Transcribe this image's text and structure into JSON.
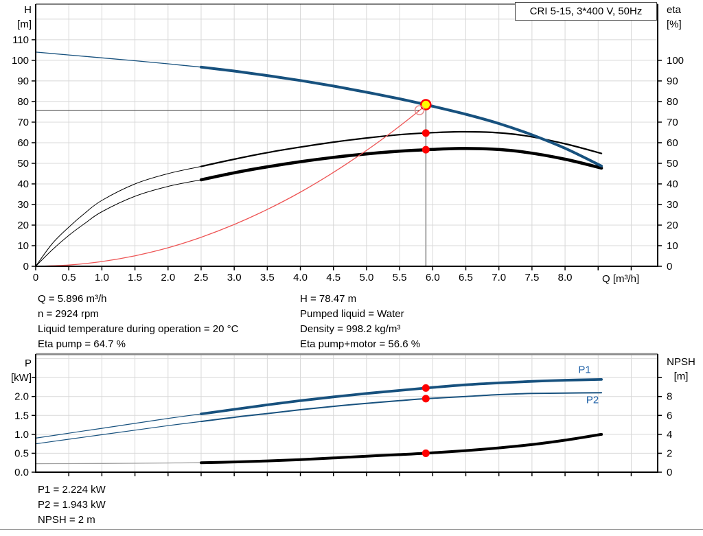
{
  "duty_text": {
    "left": [
      "Q = 5.896 m³/h",
      "n = 2924 rpm",
      "Liquid temperature during operation = 20 °C",
      "Eta pump = 64.7 %"
    ],
    "right": [
      "H = 78.47 m",
      "Pumped liquid = Water",
      "Density = 998.2 kg/m³",
      "Eta pump+motor = 56.6 %"
    ]
  },
  "power_text": [
    "P1 = 2.224 kW",
    "P2 = 1.943 kW",
    "NPSH = 2 m"
  ],
  "colors": {
    "curve_blue": "#17517e",
    "label_blue": "#1d5fa6",
    "black": "#000000",
    "red": "#ff0000",
    "light_red": "#ee5555",
    "open_marker_red": "#e98f8f",
    "yellow": "#ffff00",
    "grid": "#d8d8d8",
    "vline_gray": "#a8a8a8",
    "hline_gray": "#4d4d4d",
    "npsh_thin_gray": "#a0a0a0",
    "border_gray": "#8c8c8c",
    "white": "#ffffff"
  },
  "chart_data": [
    {
      "type": "line",
      "name": "qh-efficiency-chart",
      "title": "CRI 5-15, 3*400 V, 50Hz",
      "x_axis": {
        "label": "Q [m³/h]",
        "min": 0,
        "max": 9.4,
        "ticks": [
          {
            "v": 0,
            "t": "0"
          },
          {
            "v": 0.5,
            "t": "0.5"
          },
          {
            "v": 1,
            "t": "1.0"
          },
          {
            "v": 1.5,
            "t": "1.5"
          },
          {
            "v": 2,
            "t": "2.0"
          },
          {
            "v": 2.5,
            "t": "2.5"
          },
          {
            "v": 3,
            "t": "3.0"
          },
          {
            "v": 3.5,
            "t": "3.5"
          },
          {
            "v": 4,
            "t": "4.0"
          },
          {
            "v": 4.5,
            "t": "4.5"
          },
          {
            "v": 5,
            "t": "5.0"
          },
          {
            "v": 5.5,
            "t": "5.5"
          },
          {
            "v": 6,
            "t": "6.0"
          },
          {
            "v": 6.5,
            "t": "6.5"
          },
          {
            "v": 7,
            "t": "7.0"
          },
          {
            "v": 7.5,
            "t": "7.5"
          },
          {
            "v": 8,
            "t": "8.0"
          },
          {
            "v": 8.5,
            "t": ""
          },
          {
            "v": 9,
            "t": ""
          }
        ]
      },
      "y_left": {
        "label_lines": [
          "H",
          "[m]"
        ],
        "min": 0,
        "max": 127.3,
        "ticks": [
          {
            "v": 0,
            "t": "0"
          },
          {
            "v": 10,
            "t": "10"
          },
          {
            "v": 20,
            "t": "20"
          },
          {
            "v": 30,
            "t": "30"
          },
          {
            "v": 40,
            "t": "40"
          },
          {
            "v": 50,
            "t": "50"
          },
          {
            "v": 60,
            "t": "60"
          },
          {
            "v": 70,
            "t": "70"
          },
          {
            "v": 80,
            "t": "80"
          },
          {
            "v": 90,
            "t": "90"
          },
          {
            "v": 100,
            "t": "100"
          },
          {
            "v": 110,
            "t": "110"
          }
        ],
        "grid_extra": [
          120
        ]
      },
      "y_right": {
        "label_lines": [
          "eta",
          "[%]"
        ],
        "min": 0,
        "max": 100,
        "left_equivalent_factor": 1.0,
        "ticks": [
          {
            "v": 0,
            "t": "0"
          },
          {
            "v": 10,
            "t": "10"
          },
          {
            "v": 20,
            "t": "20"
          },
          {
            "v": 30,
            "t": "30"
          },
          {
            "v": 40,
            "t": "40"
          },
          {
            "v": 50,
            "t": "50"
          },
          {
            "v": 60,
            "t": "60"
          },
          {
            "v": 70,
            "t": "70"
          },
          {
            "v": 80,
            "t": "80"
          },
          {
            "v": 90,
            "t": "90"
          },
          {
            "v": 100,
            "t": "100"
          }
        ]
      },
      "series": [
        {
          "name": "eta-pump-curve",
          "axis": "left",
          "color": "#000000",
          "split": 2.5,
          "thin_width": 1,
          "width": 2.2,
          "points": [
            [
              0,
              0
            ],
            [
              0.25,
              11
            ],
            [
              0.5,
              19
            ],
            [
              0.75,
              26
            ],
            [
              1,
              32
            ],
            [
              1.5,
              40
            ],
            [
              2,
              45
            ],
            [
              2.5,
              48.5
            ],
            [
              3,
              52
            ],
            [
              3.5,
              55.2
            ],
            [
              4,
              57.9
            ],
            [
              4.5,
              60.3
            ],
            [
              5,
              62.3
            ],
            [
              5.5,
              63.9
            ],
            [
              5.896,
              64.7
            ],
            [
              6.4,
              65.3
            ],
            [
              6.9,
              65
            ],
            [
              7.4,
              63.4
            ],
            [
              8,
              59.5
            ],
            [
              8.55,
              54.8
            ]
          ]
        },
        {
          "name": "eta-pump-motor-curve",
          "axis": "left",
          "color": "#000000",
          "split": 2.5,
          "thin_width": 1,
          "width": 4.5,
          "points": [
            [
              0,
              0
            ],
            [
              0.25,
              8
            ],
            [
              0.5,
              15
            ],
            [
              0.75,
              21
            ],
            [
              1,
              26.5
            ],
            [
              1.5,
              34
            ],
            [
              2,
              38.8
            ],
            [
              2.5,
              42
            ],
            [
              3,
              45.4
            ],
            [
              3.5,
              48.3
            ],
            [
              4,
              50.8
            ],
            [
              4.5,
              52.9
            ],
            [
              5,
              54.6
            ],
            [
              5.5,
              55.9
            ],
            [
              5.896,
              56.6
            ],
            [
              6.4,
              57.2
            ],
            [
              6.9,
              56.9
            ],
            [
              7.4,
              55.4
            ],
            [
              8,
              52
            ],
            [
              8.55,
              47.7
            ]
          ]
        },
        {
          "name": "pump-qh-curve",
          "axis": "left",
          "color": "#17517e",
          "split": 2.5,
          "thin_width": 1.3,
          "width": 4,
          "points": [
            [
              0,
              104
            ],
            [
              0.5,
              102.6
            ],
            [
              1,
              101.2
            ],
            [
              1.5,
              99.8
            ],
            [
              2,
              98.3
            ],
            [
              2.5,
              96.7
            ],
            [
              3,
              94.8
            ],
            [
              3.5,
              92.6
            ],
            [
              4,
              90.2
            ],
            [
              4.5,
              87.5
            ],
            [
              5,
              84.5
            ],
            [
              5.5,
              81.3
            ],
            [
              5.896,
              78.47
            ],
            [
              6.5,
              73.8
            ],
            [
              7,
              69.3
            ],
            [
              7.5,
              63.8
            ],
            [
              8,
              57.3
            ],
            [
              8.55,
              48.7
            ]
          ]
        },
        {
          "name": "system-curve",
          "axis": "left",
          "color": "#ee5555",
          "width": 1.3,
          "points": [
            [
              0,
              0
            ],
            [
              0.5,
              0.6
            ],
            [
              1,
              2.3
            ],
            [
              1.5,
              5.1
            ],
            [
              2,
              9
            ],
            [
              2.5,
              14.1
            ],
            [
              3,
              20.3
            ],
            [
              3.5,
              27.6
            ],
            [
              4,
              36
            ],
            [
              4.5,
              45.6
            ],
            [
              5,
              56.3
            ],
            [
              5.4,
              65.6
            ],
            [
              5.7,
              73.1
            ],
            [
              5.896,
              78.2
            ]
          ]
        }
      ],
      "annotations": {
        "vline": {
          "x": 5.896,
          "y_from": 78.47,
          "y_to": 0
        },
        "hline": {
          "y": 75.8,
          "x_from": 0,
          "x_to": 5.8
        },
        "markers": [
          {
            "name": "duty-point-marker",
            "x": 5.896,
            "y": 78.47,
            "axis": "left",
            "style": "yellow",
            "interactable": true
          },
          {
            "name": "requested-duty-marker",
            "x": 5.8,
            "y": 75.8,
            "axis": "left",
            "style": "open",
            "interactable": false
          },
          {
            "name": "eta-pump-marker",
            "x": 5.896,
            "y": 64.7,
            "axis": "left",
            "style": "red",
            "interactable": false
          },
          {
            "name": "eta-pump-motor-marker",
            "x": 5.896,
            "y": 56.6,
            "axis": "left",
            "style": "red",
            "interactable": false
          }
        ]
      }
    },
    {
      "type": "line",
      "name": "power-npsh-chart",
      "x_axis": {
        "min": 0,
        "max": 9.4,
        "ticks": [
          {
            "v": 0.5,
            "t": ""
          },
          {
            "v": 1,
            "t": ""
          },
          {
            "v": 1.5,
            "t": ""
          },
          {
            "v": 2,
            "t": ""
          },
          {
            "v": 2.5,
            "t": ""
          },
          {
            "v": 3,
            "t": ""
          },
          {
            "v": 3.5,
            "t": ""
          },
          {
            "v": 4,
            "t": ""
          },
          {
            "v": 4.5,
            "t": ""
          },
          {
            "v": 5,
            "t": ""
          },
          {
            "v": 5.5,
            "t": ""
          },
          {
            "v": 6,
            "t": ""
          },
          {
            "v": 6.5,
            "t": ""
          },
          {
            "v": 7,
            "t": ""
          },
          {
            "v": 7.5,
            "t": ""
          },
          {
            "v": 8,
            "t": ""
          },
          {
            "v": 8.5,
            "t": ""
          },
          {
            "v": 9,
            "t": ""
          }
        ]
      },
      "y_left": {
        "label_lines": [
          "P",
          "[kW]"
        ],
        "min": 0,
        "max": 3.12,
        "ticks": [
          {
            "v": 0,
            "t": "0.0"
          },
          {
            "v": 0.5,
            "t": "0.5"
          },
          {
            "v": 1,
            "t": "1.0"
          },
          {
            "v": 1.5,
            "t": "1.5"
          },
          {
            "v": 2,
            "t": "2.0"
          },
          {
            "v": 2.5,
            "t": ""
          }
        ],
        "grid_extra": [
          3.0
        ]
      },
      "y_right": {
        "label_lines": [
          "NPSH",
          "[m]"
        ],
        "min": 0,
        "max": 10,
        "left_equivalent_factor": 0.25,
        "ticks": [
          {
            "v": 0,
            "t": "0"
          },
          {
            "v": 2,
            "t": "2"
          },
          {
            "v": 4,
            "t": "4"
          },
          {
            "v": 6,
            "t": "6"
          },
          {
            "v": 8,
            "t": "8"
          },
          {
            "v": 10,
            "t": ""
          }
        ]
      },
      "series": [
        {
          "name": "p2-curve",
          "axis": "left",
          "color": "#17517e",
          "split": 2.5,
          "thin_width": 1.2,
          "width": 2,
          "label": "P2",
          "label_pos": [
            8.32,
            1.82
          ],
          "points": [
            [
              0,
              0.75
            ],
            [
              0.5,
              0.87
            ],
            [
              1,
              0.99
            ],
            [
              1.5,
              1.11
            ],
            [
              2,
              1.23
            ],
            [
              2.5,
              1.34
            ],
            [
              3,
              1.45
            ],
            [
              3.5,
              1.55
            ],
            [
              4,
              1.65
            ],
            [
              4.5,
              1.74
            ],
            [
              5,
              1.82
            ],
            [
              5.5,
              1.89
            ],
            [
              5.896,
              1.943
            ],
            [
              6.5,
              2.0
            ],
            [
              7,
              2.05
            ],
            [
              7.5,
              2.08
            ],
            [
              8,
              2.09
            ],
            [
              8.55,
              2.1
            ]
          ]
        },
        {
          "name": "p1-curve",
          "axis": "left",
          "color": "#17517e",
          "split": 2.5,
          "thin_width": 1.2,
          "width": 3.8,
          "label": "P1",
          "label_pos": [
            8.2,
            2.62
          ],
          "points": [
            [
              0,
              0.9
            ],
            [
              0.5,
              1.03
            ],
            [
              1,
              1.16
            ],
            [
              1.5,
              1.29
            ],
            [
              2,
              1.42
            ],
            [
              2.5,
              1.54
            ],
            [
              3,
              1.66
            ],
            [
              3.5,
              1.78
            ],
            [
              4,
              1.89
            ],
            [
              4.5,
              1.99
            ],
            [
              5,
              2.08
            ],
            [
              5.5,
              2.16
            ],
            [
              5.896,
              2.224
            ],
            [
              6.5,
              2.31
            ],
            [
              7,
              2.36
            ],
            [
              7.5,
              2.4
            ],
            [
              8,
              2.43
            ],
            [
              8.55,
              2.45
            ]
          ]
        },
        {
          "name": "npsh-curve",
          "axis": "right",
          "color": "#000000",
          "split": 2.5,
          "thin_width": 1.3,
          "thin_color": "#a0a0a0",
          "width": 4,
          "points": [
            [
              0,
              0.9
            ],
            [
              0.5,
              0.91
            ],
            [
              1,
              0.92
            ],
            [
              1.5,
              0.94
            ],
            [
              2,
              0.97
            ],
            [
              2.5,
              1.0
            ],
            [
              3,
              1.08
            ],
            [
              3.5,
              1.19
            ],
            [
              4,
              1.33
            ],
            [
              4.5,
              1.5
            ],
            [
              5,
              1.69
            ],
            [
              5.5,
              1.86
            ],
            [
              5.896,
              2.0
            ],
            [
              6.5,
              2.28
            ],
            [
              7,
              2.57
            ],
            [
              7.5,
              2.92
            ],
            [
              8,
              3.38
            ],
            [
              8.55,
              4.0
            ]
          ]
        }
      ],
      "annotations": {
        "markers": [
          {
            "name": "p1-marker",
            "x": 5.896,
            "y": 2.224,
            "axis": "left",
            "style": "red",
            "interactable": false
          },
          {
            "name": "p2-marker",
            "x": 5.896,
            "y": 1.943,
            "axis": "left",
            "style": "red",
            "interactable": false
          },
          {
            "name": "npsh-marker",
            "x": 5.896,
            "y": 2,
            "axis": "right",
            "style": "red",
            "interactable": false
          }
        ]
      }
    }
  ]
}
